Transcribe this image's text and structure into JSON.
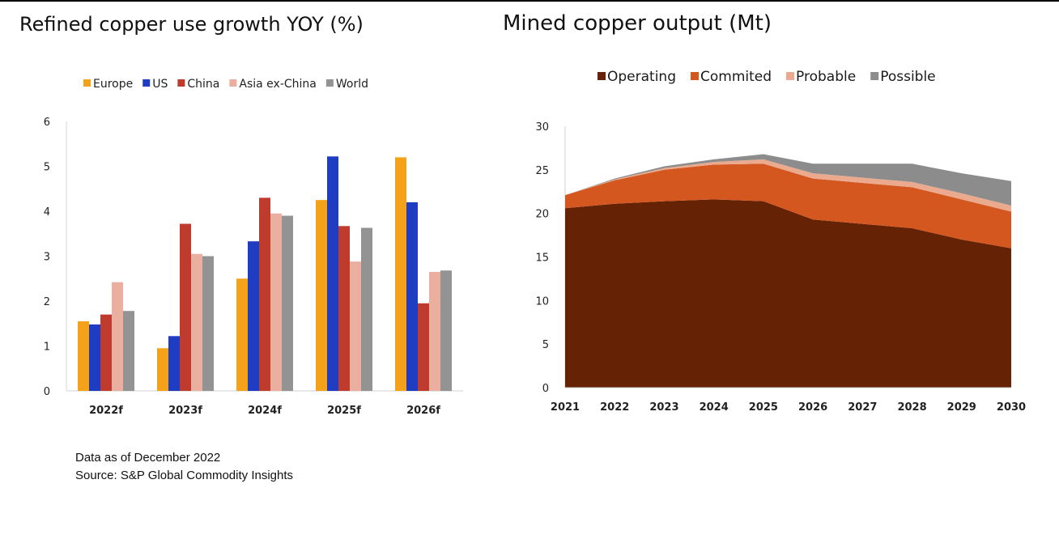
{
  "chart_data": [
    {
      "type": "bar",
      "title": "Refined copper use growth YOY (%)",
      "categories": [
        "2022f",
        "2023f",
        "2024f",
        "2025f",
        "2026f"
      ],
      "series": [
        {
          "name": "Europe",
          "color": "#F5A21B",
          "values": [
            1.55,
            0.95,
            2.5,
            4.25,
            5.2
          ]
        },
        {
          "name": "US",
          "color": "#1F3DC2",
          "values": [
            1.48,
            1.22,
            3.33,
            5.22,
            4.2
          ]
        },
        {
          "name": "China",
          "color": "#BE3B2E",
          "values": [
            1.7,
            3.72,
            4.3,
            3.67,
            1.95
          ]
        },
        {
          "name": "Asia ex-China",
          "color": "#EBAF9F",
          "values": [
            2.42,
            3.05,
            3.95,
            2.88,
            2.65
          ]
        },
        {
          "name": "World",
          "color": "#939393",
          "values": [
            1.78,
            3.0,
            3.9,
            3.63,
            2.68
          ]
        }
      ],
      "ylim": [
        0,
        6
      ],
      "yticks": [
        "0",
        "1",
        "2",
        "3",
        "4",
        "5",
        "6"
      ],
      "legend": "top"
    },
    {
      "type": "area",
      "title": "Mined copper output (Mt)",
      "x": [
        "2021",
        "2022",
        "2023",
        "2024",
        "2025",
        "2026",
        "2027",
        "2028",
        "2029",
        "2030"
      ],
      "series": [
        {
          "name": "Operating",
          "color": "#662205",
          "values": [
            20.6,
            21.1,
            21.4,
            21.6,
            21.4,
            19.3,
            18.8,
            18.3,
            17.0,
            16.0
          ]
        },
        {
          "name": "Commited",
          "color": "#D4571F",
          "values": [
            1.5,
            2.7,
            3.6,
            4.0,
            4.3,
            4.7,
            4.7,
            4.7,
            4.6,
            4.2
          ]
        },
        {
          "name": "Probable",
          "color": "#EBAA8D",
          "values": [
            0.0,
            0.1,
            0.2,
            0.3,
            0.5,
            0.6,
            0.6,
            0.6,
            0.7,
            0.7
          ]
        },
        {
          "name": "Possible",
          "color": "#8C8C8C",
          "values": [
            0.0,
            0.1,
            0.2,
            0.3,
            0.6,
            1.1,
            1.6,
            2.1,
            2.3,
            2.8
          ]
        }
      ],
      "ylim": [
        0,
        30
      ],
      "yticks": [
        "0",
        "5",
        "10",
        "15",
        "20",
        "25",
        "30"
      ],
      "legend": "top"
    }
  ],
  "footnotes": {
    "line1": "Data as of December 2022",
    "line2": "Source: S&P Global Commodity Insights"
  }
}
